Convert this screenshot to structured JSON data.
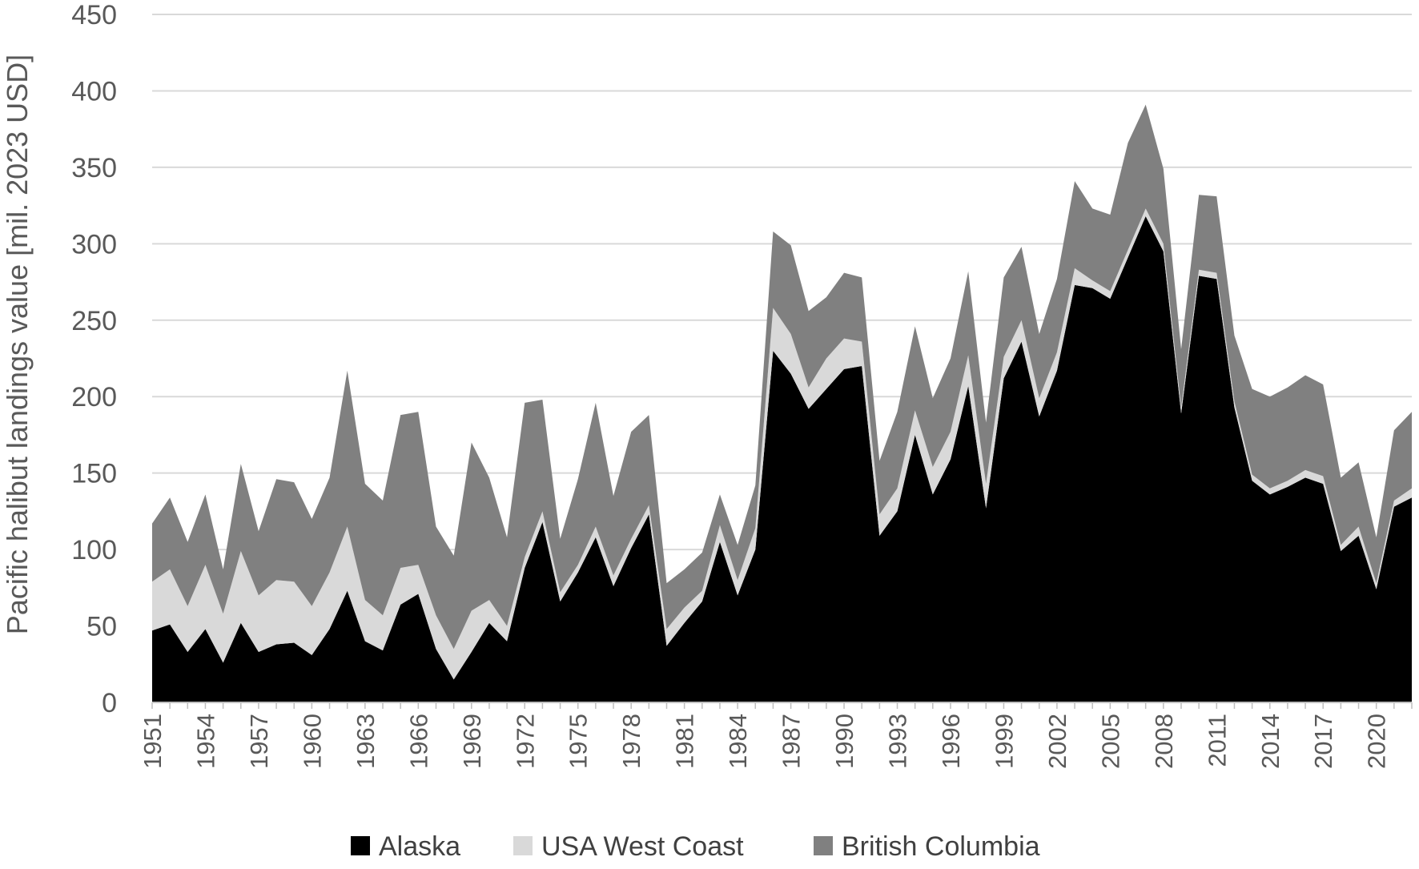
{
  "chart_data": {
    "type": "area",
    "stacked": true,
    "title": "",
    "xlabel": "",
    "ylabel": "Pacific halibut landings value [mil. 2023 USD]",
    "ylim": [
      0,
      450
    ],
    "yticks": [
      0,
      50,
      100,
      150,
      200,
      250,
      300,
      350,
      400,
      450
    ],
    "grid": "horizontal",
    "legend_position": "bottom",
    "x": [
      1951,
      1952,
      1953,
      1954,
      1955,
      1956,
      1957,
      1958,
      1959,
      1960,
      1961,
      1962,
      1963,
      1964,
      1965,
      1966,
      1967,
      1968,
      1969,
      1970,
      1971,
      1972,
      1973,
      1974,
      1975,
      1976,
      1977,
      1978,
      1979,
      1980,
      1981,
      1982,
      1983,
      1984,
      1985,
      1986,
      1987,
      1988,
      1989,
      1990,
      1991,
      1992,
      1993,
      1994,
      1995,
      1996,
      1997,
      1998,
      1999,
      2000,
      2001,
      2002,
      2003,
      2004,
      2005,
      2006,
      2007,
      2008,
      2009,
      2010,
      2011,
      2012,
      2013,
      2014,
      2015,
      2016,
      2017,
      2018,
      2019,
      2020,
      2021,
      2022
    ],
    "xtick_labels": [
      "1951",
      "1954",
      "1957",
      "1960",
      "1963",
      "1966",
      "1969",
      "1972",
      "1975",
      "1978",
      "1981",
      "1984",
      "1987",
      "1990",
      "1993",
      "1996",
      "1999",
      "2002",
      "2005",
      "2008",
      "2011",
      "2014",
      "2017",
      "2020"
    ],
    "series": [
      {
        "name": "Alaska",
        "color": "#000000",
        "values": [
          47,
          51,
          33,
          48,
          26,
          52,
          33,
          38,
          39,
          31,
          48,
          73,
          40,
          34,
          64,
          71,
          35,
          15,
          33,
          52,
          40,
          88,
          118,
          66,
          85,
          108,
          76,
          101,
          123,
          37,
          52,
          66,
          105,
          70,
          100,
          230,
          215,
          192,
          205,
          218,
          220,
          109,
          125,
          175,
          136,
          159,
          207,
          127,
          212,
          236,
          187,
          217,
          273,
          271,
          264,
          291,
          318,
          295,
          189,
          279,
          277,
          193,
          145,
          136,
          141,
          147,
          143,
          99,
          109,
          74,
          128,
          134
        ]
      },
      {
        "name": "USA West Coast",
        "color": "#d9d9d9",
        "values": [
          32,
          36,
          30,
          42,
          32,
          47,
          37,
          42,
          40,
          32,
          37,
          42,
          27,
          23,
          24,
          19,
          22,
          20,
          27,
          15,
          10,
          7,
          7,
          6,
          5,
          7,
          7,
          6,
          6,
          11,
          10,
          7,
          11,
          10,
          14,
          28,
          26,
          14,
          20,
          20,
          16,
          14,
          15,
          16,
          18,
          18,
          20,
          16,
          14,
          14,
          12,
          12,
          11,
          5,
          5,
          5,
          5,
          5,
          4,
          4,
          4,
          4,
          4,
          4,
          4,
          5,
          5,
          4,
          6,
          4,
          4,
          6
        ]
      },
      {
        "name": "British Columbia",
        "color": "#808080",
        "values": [
          38,
          47,
          42,
          46,
          29,
          57,
          42,
          66,
          65,
          57,
          62,
          102,
          76,
          75,
          100,
          100,
          58,
          61,
          110,
          80,
          58,
          101,
          73,
          35,
          56,
          81,
          52,
          70,
          59,
          30,
          25,
          25,
          20,
          23,
          28,
          50,
          58,
          50,
          40,
          43,
          42,
          35,
          50,
          55,
          45,
          48,
          55,
          40,
          52,
          48,
          42,
          48,
          57,
          47,
          50,
          70,
          68,
          49,
          38,
          49,
          50,
          43,
          56,
          60,
          61,
          62,
          60,
          44,
          42,
          30,
          46,
          50
        ]
      }
    ]
  }
}
